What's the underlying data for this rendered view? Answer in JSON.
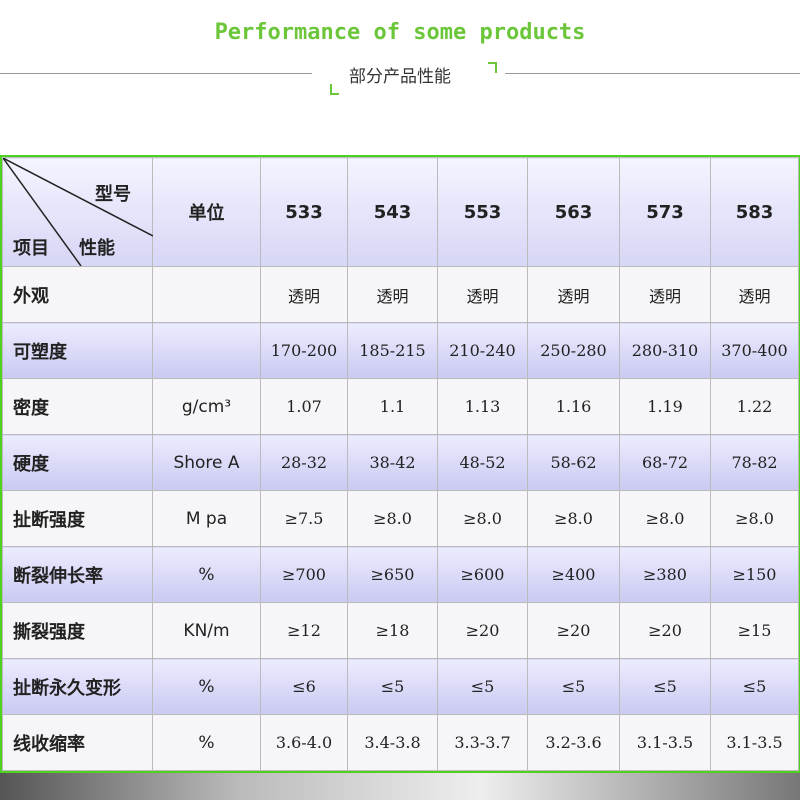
{
  "header": {
    "title": "Performance of some products",
    "subtitle": "部分产品性能"
  },
  "table": {
    "corner": {
      "model": "型号",
      "item": "项目",
      "property": "性能"
    },
    "unit_header": "单位",
    "models": [
      "533",
      "543",
      "553",
      "563",
      "573",
      "583"
    ],
    "rows": [
      {
        "label": "外观",
        "values": [
          "透明",
          "透明",
          "透明",
          "透明",
          "透明",
          "透明"
        ]
      },
      {
        "label": "可塑度",
        "values": [
          "170-200",
          "185-215",
          "210-240",
          "250-280",
          "280-310",
          "370-400"
        ]
      },
      {
        "label": "密度",
        "unit": "g/cm³",
        "values": [
          "1.07",
          "1.1",
          "1.13",
          "1.16",
          "1.19",
          "1.22"
        ]
      },
      {
        "label": "硬度",
        "unit": "Shore A",
        "values": [
          "28-32",
          "38-42",
          "48-52",
          "58-62",
          "68-72",
          "78-82"
        ]
      },
      {
        "label": "扯断强度",
        "unit": "M pa",
        "values": [
          "≥7.5",
          "≥8.0",
          "≥8.0",
          "≥8.0",
          "≥8.0",
          "≥8.0"
        ]
      },
      {
        "label": "断裂伸长率",
        "unit": "%",
        "values": [
          "≥700",
          "≥650",
          "≥600",
          "≥400",
          "≥380",
          "≥150"
        ]
      },
      {
        "label": "撕裂强度",
        "unit": "KN/m",
        "values": [
          "≥12",
          "≥18",
          "≥20",
          "≥20",
          "≥20",
          "≥15"
        ]
      },
      {
        "label": "扯断永久变形",
        "unit": "%",
        "values": [
          "≤6",
          "≤5",
          "≤5",
          "≤5",
          "≤5",
          "≤5"
        ]
      },
      {
        "label": "线收缩率",
        "unit": "%",
        "values": [
          "3.6-4.0",
          "3.4-3.8",
          "3.3-3.7",
          "3.2-3.6",
          "3.1-3.5",
          "3.1-3.5"
        ]
      }
    ]
  }
}
